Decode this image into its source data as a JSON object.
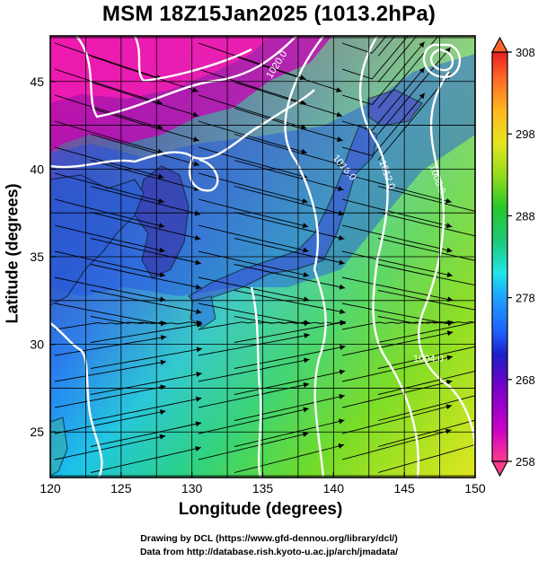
{
  "title": "MSM 18Z15Jan2025 (1013.2hPa)",
  "axes": {
    "xlabel": "Longitude (degrees)",
    "ylabel": "Latitude  (degrees)",
    "x_ticks": [
      "120",
      "125",
      "130",
      "135",
      "140",
      "145",
      "150"
    ],
    "y_ticks": [
      "25",
      "30",
      "35",
      "40",
      "45"
    ],
    "xlim": [
      120,
      150
    ],
    "ylim": [
      22.4,
      47.6
    ]
  },
  "colorbar": {
    "ticks": [
      "308",
      "298",
      "288",
      "278",
      "268",
      "258"
    ],
    "range": [
      258,
      308
    ],
    "colors": [
      "#ff3c8c",
      "#c800c8",
      "#7800c8",
      "#1e1ec8",
      "#1e64ff",
      "#1ea0ff",
      "#1ee6e6",
      "#1ec878",
      "#28c828",
      "#96dc1e",
      "#e6e61e",
      "#ffb41e",
      "#ff6428",
      "#e61e1e"
    ]
  },
  "contours": {
    "labels": [
      "1020.0",
      "1016.0",
      "1012.0",
      "1008.0",
      "1004.0"
    ]
  },
  "credits": {
    "line1": "Drawing by DCL (https://www.gfd-dennou.org/library/dcl/)",
    "line2": "Data from http://database.rish.kyoto-u.ac.jp/arch/jmadata/"
  },
  "chart_data": {
    "type": "heatmap",
    "title": "MSM 18Z15Jan2025 (1013.2hPa)",
    "xlabel": "Longitude (degrees)",
    "ylabel": "Latitude  (degrees)",
    "xlim": [
      120,
      150
    ],
    "ylim": [
      22.4,
      47.6
    ],
    "color_range": [
      258,
      308
    ],
    "color_ticks": [
      258,
      268,
      278,
      288,
      298,
      308
    ],
    "contour_levels": [
      1004.0,
      1008.0,
      1012.0,
      1016.0,
      1020.0
    ],
    "grid": true
  }
}
